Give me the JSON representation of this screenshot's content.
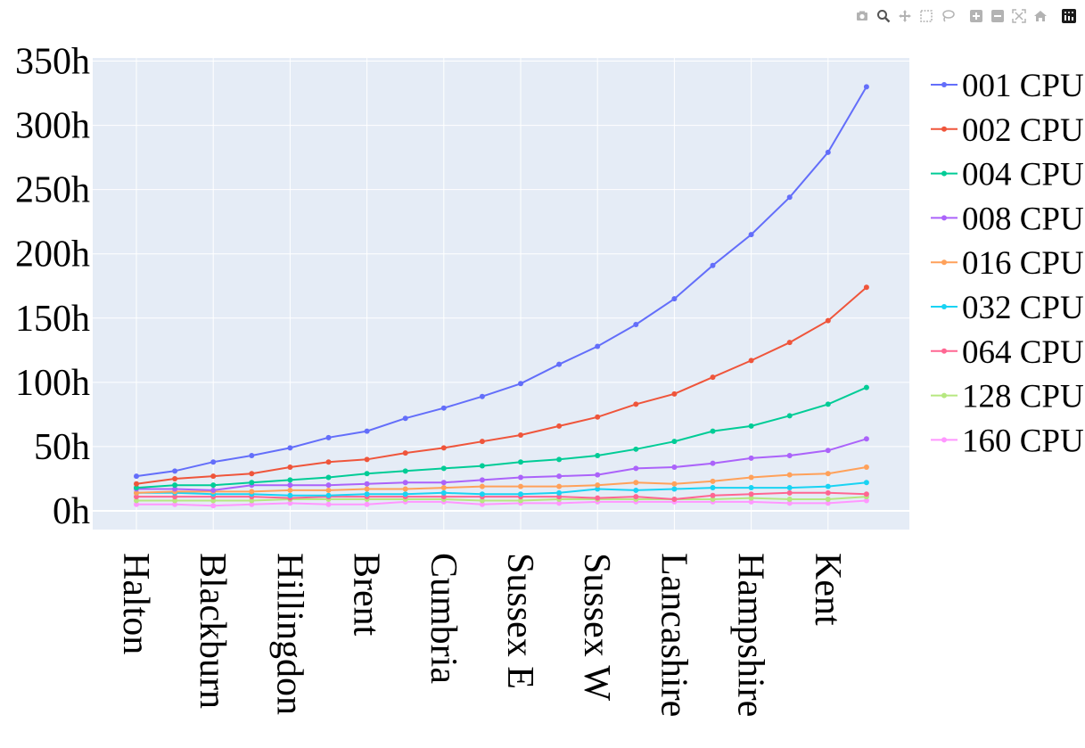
{
  "modebar": {
    "buttons": [
      {
        "name": "camera-icon"
      },
      {
        "name": "zoom-icon",
        "active": true
      },
      {
        "name": "pan-icon"
      },
      {
        "name": "box-select-icon"
      },
      {
        "name": "lasso-select-icon"
      },
      {
        "gap": true
      },
      {
        "name": "zoom-in-icon"
      },
      {
        "name": "zoom-out-icon"
      },
      {
        "name": "autoscale-icon"
      },
      {
        "name": "reset-axes-icon"
      },
      {
        "gap": true
      },
      {
        "name": "plotly-logo-icon"
      }
    ]
  },
  "colors": {
    "plot_bg": "#e5ecf6",
    "grid": "#ffffff",
    "series": [
      "#636efa",
      "#ef553b",
      "#00cc96",
      "#ab63fa",
      "#ffa15a",
      "#19d3f3",
      "#ff6692",
      "#b6e880",
      "#ff97ff"
    ]
  },
  "chart_data": {
    "type": "line",
    "title": "",
    "xlabel": "",
    "ylabel": "",
    "ylim": [
      -15,
      352
    ],
    "y_ticks": [
      0,
      50,
      100,
      150,
      200,
      250,
      300,
      350
    ],
    "y_tick_labels": [
      "0h",
      "50h",
      "100h",
      "150h",
      "200h",
      "250h",
      "300h",
      "350h"
    ],
    "x_tick_labels": [
      "Halton",
      "Blackburn",
      "Hillingdon",
      "Brent",
      "Cumbria",
      "Sussex E",
      "Sussex W",
      "Lancashire",
      "Hampshire",
      "Kent"
    ],
    "grid": true,
    "legend_position": "right",
    "n_points": 20,
    "series": [
      {
        "name": "001 CPU",
        "values": [
          27,
          31,
          38,
          43,
          49,
          57,
          62,
          72,
          80,
          89,
          99,
          114,
          128,
          145,
          165,
          191,
          215,
          244,
          279,
          330
        ]
      },
      {
        "name": "002 CPU",
        "values": [
          21,
          25,
          27,
          29,
          34,
          38,
          40,
          45,
          49,
          54,
          59,
          66,
          73,
          83,
          91,
          104,
          117,
          131,
          148,
          174
        ]
      },
      {
        "name": "004 CPU",
        "values": [
          18,
          20,
          20,
          22,
          24,
          26,
          29,
          31,
          33,
          35,
          38,
          40,
          43,
          48,
          54,
          62,
          66,
          74,
          83,
          96
        ]
      },
      {
        "name": "008 CPU",
        "values": [
          17,
          17,
          16,
          20,
          20,
          20,
          21,
          22,
          22,
          24,
          26,
          27,
          28,
          33,
          34,
          37,
          41,
          43,
          47,
          56
        ]
      },
      {
        "name": "016 CPU",
        "values": [
          14,
          15,
          15,
          15,
          16,
          16,
          17,
          17,
          18,
          19,
          19,
          19,
          20,
          22,
          21,
          23,
          26,
          28,
          29,
          34
        ]
      },
      {
        "name": "032 CPU",
        "values": [
          14,
          14,
          13,
          13,
          12,
          12,
          13,
          13,
          14,
          13,
          13,
          14,
          17,
          16,
          17,
          18,
          18,
          18,
          19,
          22
        ]
      },
      {
        "name": "064 CPU",
        "values": [
          11,
          11,
          11,
          11,
          10,
          11,
          11,
          11,
          11,
          11,
          11,
          11,
          10,
          11,
          9,
          12,
          13,
          14,
          14,
          13
        ]
      },
      {
        "name": "128 CPU",
        "values": [
          8,
          8,
          8,
          8,
          9,
          9,
          9,
          9,
          9,
          8,
          8,
          9,
          9,
          9,
          9,
          9,
          10,
          9,
          9,
          11
        ]
      },
      {
        "name": "160 CPU",
        "values": [
          5,
          5,
          4,
          5,
          6,
          5,
          5,
          7,
          7,
          5,
          6,
          6,
          7,
          7,
          7,
          7,
          7,
          6,
          6,
          8
        ]
      }
    ]
  }
}
